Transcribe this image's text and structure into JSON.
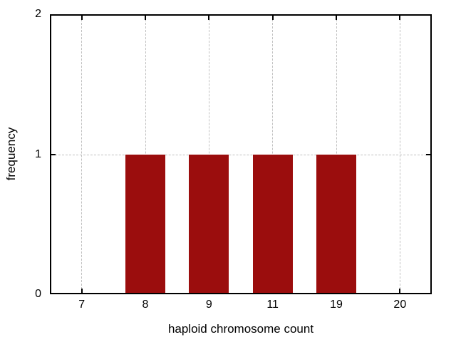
{
  "chart_data": {
    "type": "bar",
    "categories": [
      "7",
      "8",
      "9",
      "11",
      "19",
      "20"
    ],
    "values": [
      0,
      1,
      1,
      1,
      1,
      0
    ],
    "title": "",
    "xlabel": "haploid chromosome count",
    "ylabel": "frequency",
    "ylim": [
      0,
      2
    ],
    "yticks": [
      0,
      1,
      2
    ],
    "legend_position": "none",
    "grid": "dashed",
    "colors": {
      "bar": "#9b0d0d",
      "grid": "#c0c0c0",
      "axis": "#000000",
      "background": "#ffffff",
      "text": "#000000"
    }
  }
}
